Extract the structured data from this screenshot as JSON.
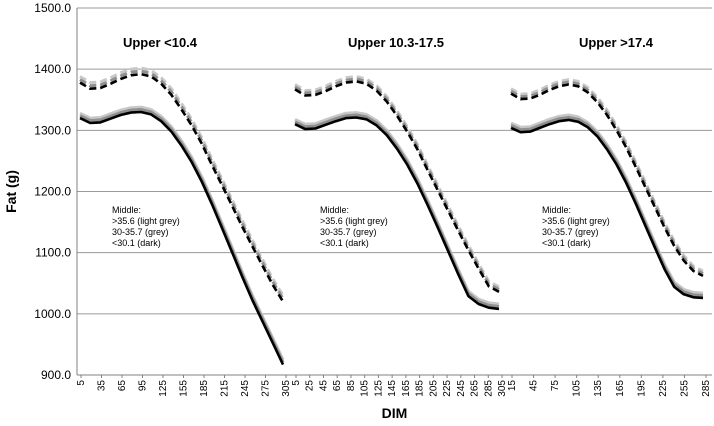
{
  "chart_data": {
    "type": "line",
    "xlabel": "DIM",
    "ylabel": "Fat (g)",
    "ylim": [
      900,
      1500
    ],
    "yticks": [
      "900.0",
      "1000.0",
      "1100.0",
      "1200.0",
      "1300.0",
      "1400.0",
      "1500.0"
    ],
    "grid": "horizontal",
    "panels": [
      {
        "title": "Upper <10.4",
        "x_ticks": [
          "5",
          "35",
          "65",
          "95",
          "125",
          "155",
          "185",
          "215",
          "245",
          "275",
          "305"
        ],
        "note": [
          "Middle:",
          ">35.6 (light grey)",
          "30-35.7 (grey)",
          "<30.1 (dark)"
        ],
        "series": [
          {
            "style": "dashed",
            "shade": "light grey",
            "x": [
              5,
              20,
              35,
              50,
              65,
              80,
              95,
              110,
              125,
              140,
              155,
              170,
              185,
              200,
              215,
              230,
              245,
              260,
              275,
              290,
              305
            ],
            "y": [
              1388,
              1378,
              1379,
              1386,
              1394,
              1400,
              1402,
              1398,
              1386,
              1368,
              1344,
              1318,
              1288,
              1253,
              1220,
              1186,
              1152,
              1120,
              1088,
              1057,
              1030
            ]
          },
          {
            "style": "dashed",
            "shade": "grey",
            "x": [
              5,
              20,
              35,
              50,
              65,
              80,
              95,
              110,
              125,
              140,
              155,
              170,
              185,
              200,
              215,
              230,
              245,
              260,
              275,
              290,
              305
            ],
            "y": [
              1383,
              1373,
              1374,
              1381,
              1389,
              1395,
              1397,
              1393,
              1381,
              1363,
              1339,
              1313,
              1283,
              1248,
              1215,
              1181,
              1147,
              1115,
              1083,
              1052,
              1025
            ]
          },
          {
            "style": "dashed",
            "shade": "dark",
            "x": [
              5,
              20,
              35,
              50,
              65,
              80,
              95,
              110,
              125,
              140,
              155,
              170,
              185,
              200,
              215,
              230,
              245,
              260,
              275,
              290,
              305
            ],
            "y": [
              1378,
              1368,
              1369,
              1376,
              1384,
              1390,
              1392,
              1388,
              1376,
              1358,
              1334,
              1308,
              1278,
              1243,
              1210,
              1176,
              1142,
              1110,
              1078,
              1047,
              1020
            ]
          },
          {
            "style": "solid",
            "shade": "light grey",
            "x": [
              5,
              20,
              35,
              50,
              65,
              80,
              95,
              110,
              125,
              140,
              155,
              170,
              185,
              200,
              215,
              230,
              245,
              260,
              275,
              290,
              305
            ],
            "y": [
              1328,
              1320,
              1321,
              1327,
              1333,
              1337,
              1338,
              1334,
              1323,
              1306,
              1283,
              1256,
              1224,
              1187,
              1148,
              1108,
              1068,
              1030,
              995,
              960,
              925
            ]
          },
          {
            "style": "solid",
            "shade": "grey",
            "x": [
              5,
              20,
              35,
              50,
              65,
              80,
              95,
              110,
              125,
              140,
              155,
              170,
              185,
              200,
              215,
              230,
              245,
              260,
              275,
              290,
              305
            ],
            "y": [
              1324,
              1316,
              1317,
              1323,
              1329,
              1333,
              1334,
              1330,
              1319,
              1302,
              1279,
              1252,
              1220,
              1183,
              1144,
              1104,
              1064,
              1026,
              991,
              956,
              921
            ]
          },
          {
            "style": "solid",
            "shade": "dark",
            "x": [
              5,
              20,
              35,
              50,
              65,
              80,
              95,
              110,
              125,
              140,
              155,
              170,
              185,
              200,
              215,
              230,
              245,
              260,
              275,
              290,
              305
            ],
            "y": [
              1320,
              1312,
              1313,
              1319,
              1325,
              1329,
              1330,
              1326,
              1315,
              1298,
              1275,
              1248,
              1216,
              1179,
              1140,
              1100,
              1060,
              1022,
              987,
              952,
              917
            ]
          }
        ]
      },
      {
        "title": "Upper 10.3-17.5",
        "x_ticks": [
          "5",
          "25",
          "45",
          "65",
          "85",
          "105",
          "125",
          "145",
          "165",
          "185",
          "205",
          "225",
          "245",
          "265",
          "285",
          "305"
        ],
        "note": [
          "Middle:",
          ">35.6 (light grey)",
          "30-35.7 (grey)",
          "<30.1 (dark)"
        ],
        "series": [
          {
            "style": "dashed",
            "shade": "light grey",
            "x": [
              5,
              20,
              35,
              50,
              65,
              80,
              95,
              110,
              125,
              140,
              155,
              170,
              185,
              200,
              215,
              230,
              245,
              260,
              275,
              290,
              305
            ],
            "y": [
              1375,
              1365,
              1366,
              1372,
              1380,
              1386,
              1388,
              1384,
              1373,
              1355,
              1332,
              1306,
              1277,
              1243,
              1210,
              1177,
              1144,
              1112,
              1082,
              1053,
              1044
            ]
          },
          {
            "style": "dashed",
            "shade": "grey",
            "x": [
              5,
              20,
              35,
              50,
              65,
              80,
              95,
              110,
              125,
              140,
              155,
              170,
              185,
              200,
              215,
              230,
              245,
              260,
              275,
              290,
              305
            ],
            "y": [
              1371,
              1361,
              1362,
              1368,
              1376,
              1382,
              1384,
              1380,
              1369,
              1351,
              1328,
              1302,
              1273,
              1239,
              1206,
              1173,
              1140,
              1108,
              1078,
              1049,
              1040
            ]
          },
          {
            "style": "dashed",
            "shade": "dark",
            "x": [
              5,
              20,
              35,
              50,
              65,
              80,
              95,
              110,
              125,
              140,
              155,
              170,
              185,
              200,
              215,
              230,
              245,
              260,
              275,
              290,
              305
            ],
            "y": [
              1367,
              1357,
              1358,
              1364,
              1372,
              1378,
              1380,
              1376,
              1365,
              1347,
              1324,
              1298,
              1269,
              1235,
              1202,
              1169,
              1136,
              1104,
              1074,
              1045,
              1036
            ]
          },
          {
            "style": "solid",
            "shade": "light grey",
            "x": [
              5,
              20,
              35,
              50,
              65,
              80,
              95,
              110,
              125,
              140,
              155,
              170,
              185,
              200,
              215,
              230,
              245,
              260,
              275,
              290,
              305
            ],
            "y": [
              1318,
              1310,
              1311,
              1317,
              1323,
              1328,
              1329,
              1326,
              1316,
              1300,
              1278,
              1252,
              1221,
              1186,
              1149,
              1111,
              1073,
              1037,
              1024,
              1018,
              1016
            ]
          },
          {
            "style": "solid",
            "shade": "grey",
            "x": [
              5,
              20,
              35,
              50,
              65,
              80,
              95,
              110,
              125,
              140,
              155,
              170,
              185,
              200,
              215,
              230,
              245,
              260,
              275,
              290,
              305
            ],
            "y": [
              1314,
              1306,
              1307,
              1313,
              1319,
              1324,
              1325,
              1322,
              1312,
              1296,
              1274,
              1248,
              1217,
              1182,
              1145,
              1107,
              1069,
              1033,
              1020,
              1014,
              1012
            ]
          },
          {
            "style": "solid",
            "shade": "dark",
            "x": [
              5,
              20,
              35,
              50,
              65,
              80,
              95,
              110,
              125,
              140,
              155,
              170,
              185,
              200,
              215,
              230,
              245,
              260,
              275,
              290,
              305
            ],
            "y": [
              1310,
              1302,
              1303,
              1309,
              1315,
              1320,
              1321,
              1318,
              1308,
              1292,
              1270,
              1244,
              1213,
              1178,
              1141,
              1103,
              1065,
              1029,
              1016,
              1010,
              1008
            ]
          }
        ]
      },
      {
        "title": "Upper >17.4",
        "x_ticks": [
          "15",
          "45",
          "75",
          "105",
          "135",
          "165",
          "195",
          "225",
          "255",
          "285"
        ],
        "note": [
          "Middle:",
          ">35.6 (light grey)",
          "30-35.7 (grey)",
          "<30.1 (dark)"
        ],
        "series": [
          {
            "style": "dashed",
            "shade": "light grey",
            "x": [
              5,
              20,
              35,
              50,
              65,
              80,
              95,
              110,
              125,
              140,
              155,
              170,
              185,
              200,
              215,
              230,
              245,
              260,
              275,
              290,
              305
            ],
            "y": [
              1368,
              1359,
              1360,
              1366,
              1374,
              1380,
              1383,
              1380,
              1370,
              1354,
              1333,
              1308,
              1280,
              1248,
              1215,
              1182,
              1149,
              1119,
              1095,
              1078,
              1070
            ]
          },
          {
            "style": "dashed",
            "shade": "grey",
            "x": [
              5,
              20,
              35,
              50,
              65,
              80,
              95,
              110,
              125,
              140,
              155,
              170,
              185,
              200,
              215,
              230,
              245,
              260,
              275,
              290,
              305
            ],
            "y": [
              1364,
              1355,
              1356,
              1362,
              1370,
              1376,
              1379,
              1376,
              1366,
              1350,
              1329,
              1304,
              1276,
              1244,
              1211,
              1178,
              1145,
              1115,
              1091,
              1074,
              1066
            ]
          },
          {
            "style": "dashed",
            "shade": "dark",
            "x": [
              5,
              20,
              35,
              50,
              65,
              80,
              95,
              110,
              125,
              140,
              155,
              170,
              185,
              200,
              215,
              230,
              245,
              260,
              275,
              290,
              305
            ],
            "y": [
              1360,
              1351,
              1352,
              1358,
              1366,
              1372,
              1375,
              1372,
              1362,
              1346,
              1325,
              1300,
              1272,
              1240,
              1207,
              1174,
              1141,
              1111,
              1087,
              1070,
              1062
            ]
          },
          {
            "style": "solid",
            "shade": "light grey",
            "x": [
              5,
              20,
              35,
              50,
              65,
              80,
              95,
              110,
              125,
              140,
              155,
              170,
              185,
              200,
              215,
              230,
              245,
              260,
              275,
              290,
              305
            ],
            "y": [
              1312,
              1305,
              1306,
              1312,
              1318,
              1323,
              1325,
              1322,
              1313,
              1298,
              1277,
              1252,
              1222,
              1188,
              1152,
              1116,
              1081,
              1052,
              1040,
              1035,
              1034
            ]
          },
          {
            "style": "solid",
            "shade": "grey",
            "x": [
              5,
              20,
              35,
              50,
              65,
              80,
              95,
              110,
              125,
              140,
              155,
              170,
              185,
              200,
              215,
              230,
              245,
              260,
              275,
              290,
              305
            ],
            "y": [
              1308,
              1301,
              1302,
              1308,
              1314,
              1319,
              1321,
              1318,
              1309,
              1294,
              1273,
              1248,
              1218,
              1184,
              1148,
              1112,
              1077,
              1048,
              1036,
              1031,
              1030
            ]
          },
          {
            "style": "solid",
            "shade": "dark",
            "x": [
              5,
              20,
              35,
              50,
              65,
              80,
              95,
              110,
              125,
              140,
              155,
              170,
              185,
              200,
              215,
              230,
              245,
              260,
              275,
              290,
              305
            ],
            "y": [
              1304,
              1297,
              1298,
              1304,
              1310,
              1315,
              1317,
              1314,
              1305,
              1290,
              1269,
              1244,
              1214,
              1180,
              1144,
              1108,
              1073,
              1044,
              1032,
              1027,
              1026
            ]
          }
        ]
      }
    ]
  },
  "colors": {
    "light grey": "#c8c8c8",
    "grey": "#8f8f8f",
    "dark": "#000000",
    "grid": "#9a9a9a",
    "axis": "#808080"
  }
}
